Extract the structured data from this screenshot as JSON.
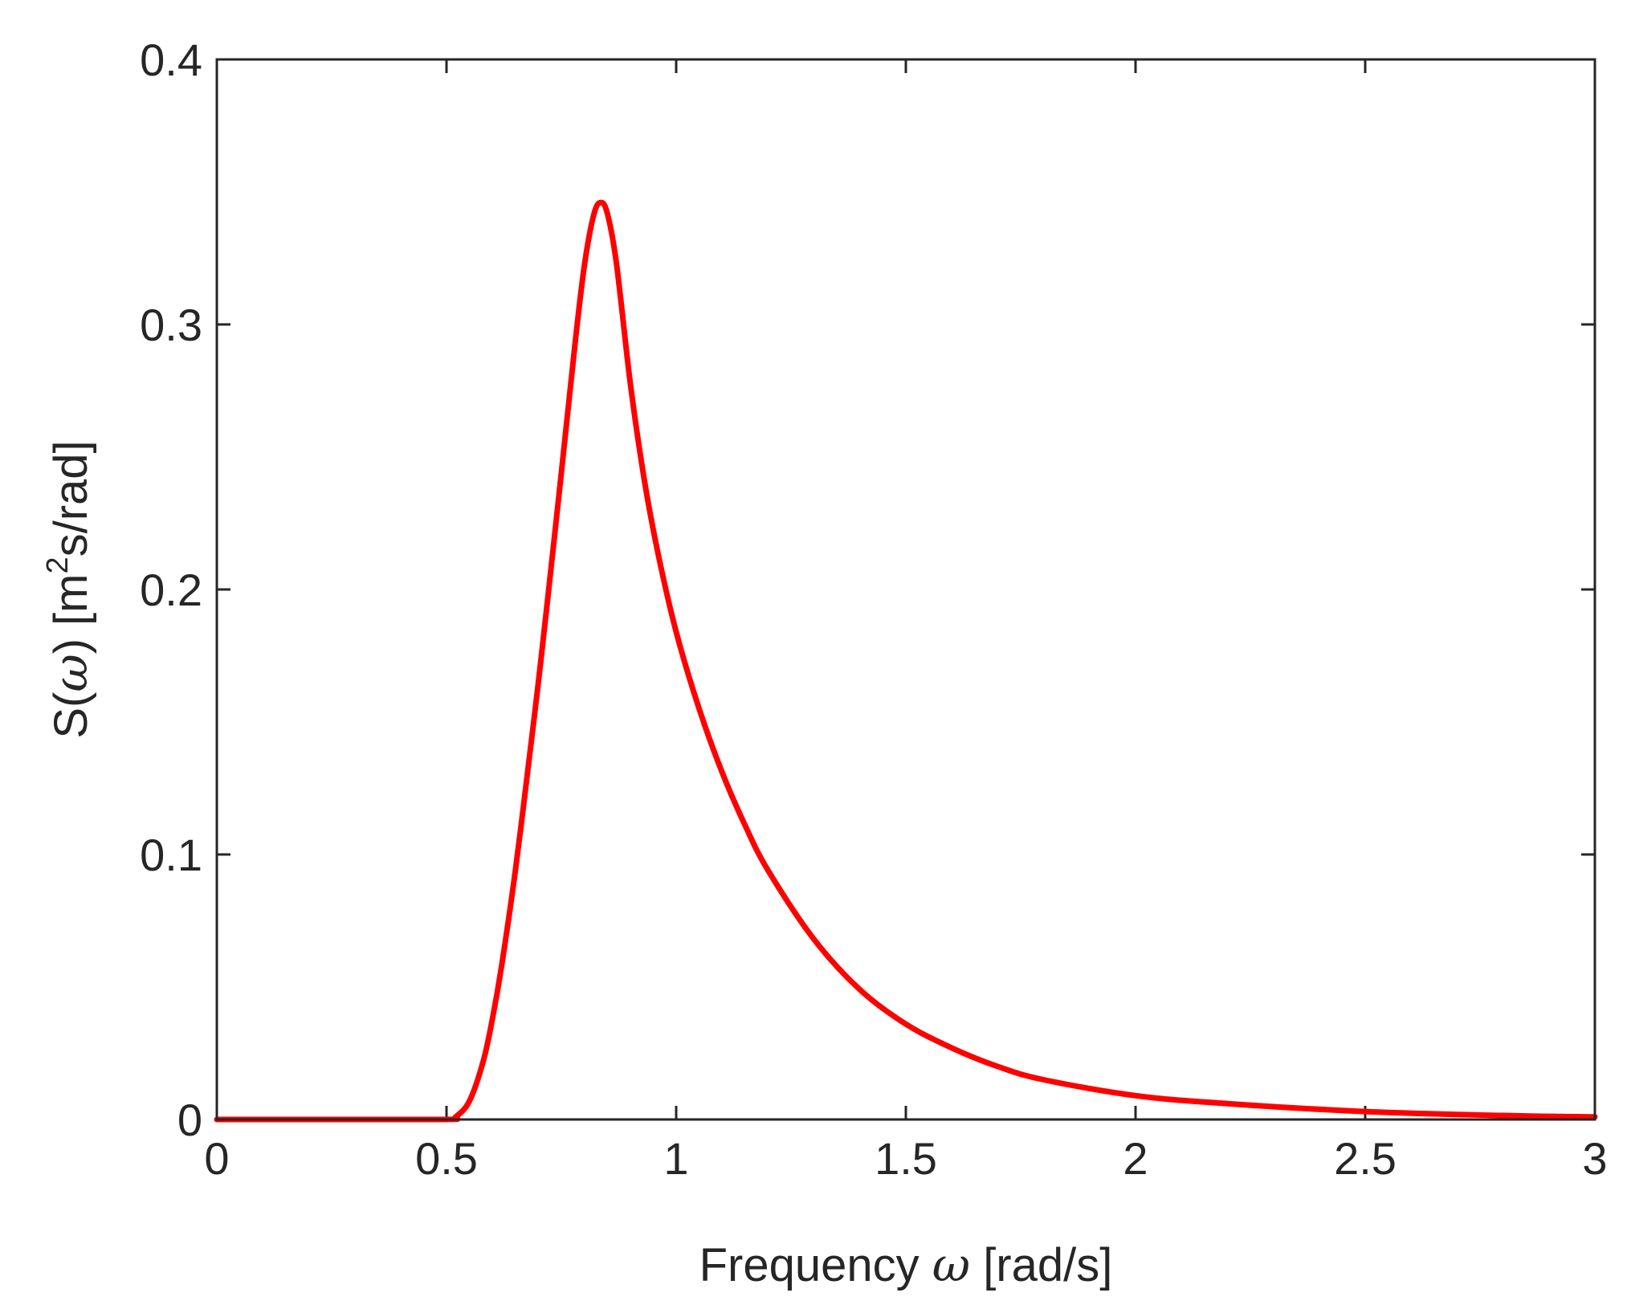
{
  "chart_data": {
    "type": "line",
    "title": "",
    "xlabel": "Frequency ω [rad/s]",
    "ylabel": "S(ω) [m²s/rad]",
    "ylabel_parts": {
      "prefix": "S(",
      "omega": "ω",
      "middle": ") [m",
      "sup": "2",
      "suffix": "s/rad]"
    },
    "xlabel_parts": {
      "prefix": "Frequency ",
      "omega": "ω",
      "suffix": " [rad/s]"
    },
    "xlim": [
      0,
      3
    ],
    "ylim": [
      0,
      0.4
    ],
    "xticks": [
      0,
      0.5,
      1,
      1.5,
      2,
      2.5,
      3
    ],
    "xtick_labels": [
      "0",
      "0.5",
      "1",
      "1.5",
      "2",
      "2.5",
      "3"
    ],
    "yticks": [
      0,
      0.1,
      0.2,
      0.3,
      0.4
    ],
    "ytick_labels": [
      "0",
      "0.1",
      "0.2",
      "0.3",
      "0.4"
    ],
    "grid": false,
    "box": true,
    "series": [
      {
        "color": "#ff0000",
        "x": [
          0,
          0.25,
          0.5,
          0.52,
          0.55,
          0.58,
          0.6,
          0.62,
          0.65,
          0.68,
          0.7,
          0.72,
          0.75,
          0.78,
          0.8,
          0.82,
          0.835,
          0.85,
          0.87,
          0.9,
          0.93,
          0.96,
          1.0,
          1.05,
          1.1,
          1.15,
          1.2,
          1.3,
          1.4,
          1.5,
          1.6,
          1.7,
          1.8,
          2.0,
          2.2,
          2.5,
          2.8,
          3.0
        ],
        "y": [
          0,
          0,
          0,
          0.001,
          0.007,
          0.022,
          0.038,
          0.058,
          0.094,
          0.136,
          0.165,
          0.196,
          0.244,
          0.293,
          0.322,
          0.341,
          0.346,
          0.342,
          0.323,
          0.278,
          0.242,
          0.214,
          0.184,
          0.155,
          0.131,
          0.111,
          0.094,
          0.068,
          0.049,
          0.036,
          0.027,
          0.02,
          0.015,
          0.009,
          0.006,
          0.003,
          0.0015,
          0.001
        ]
      }
    ]
  }
}
